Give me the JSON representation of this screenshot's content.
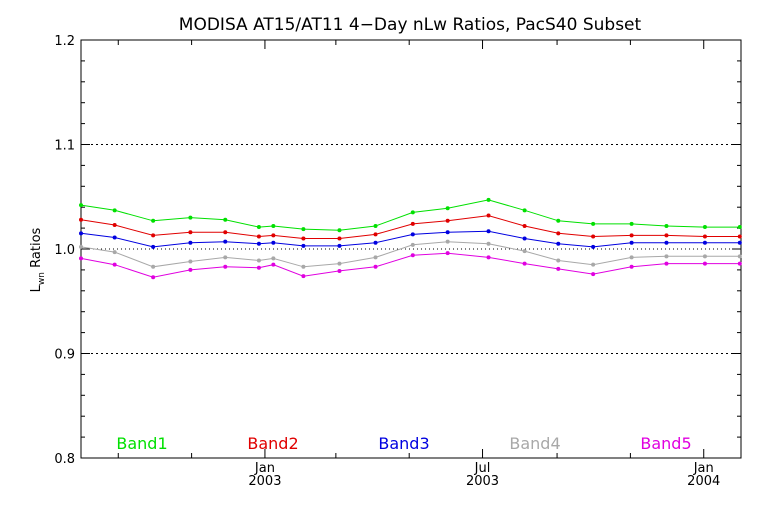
{
  "chart_data": {
    "type": "line",
    "title": "MODISA AT15/AT11 4−Day nLw Ratios, PacS40 Subset",
    "ylabel": "L",
    "ylabel_sub": "wn",
    "ylabel_suffix": " Ratios",
    "ylim": [
      0.8,
      1.2
    ],
    "yticks": [
      0.8,
      0.9,
      1.0,
      1.1,
      1.2
    ],
    "ytick_labels": [
      "0.8",
      "0.9",
      "1.0",
      "1.1",
      "1.2"
    ],
    "grid_y": [
      0.9,
      1.1
    ],
    "reference_line": 1.0,
    "xlim": [
      "2002-08-01",
      "2004-02-01"
    ],
    "xticks": [
      {
        "date": "2003-01-01",
        "line1": "Jan",
        "line2": "2003"
      },
      {
        "date": "2003-07-01",
        "line1": "Jul",
        "line2": "2003"
      },
      {
        "date": "2004-01-01",
        "line1": "Jan",
        "line2": "2004"
      }
    ],
    "xminor_dates": [
      "2002-09-01",
      "2002-11-01",
      "2003-03-01",
      "2003-05-01",
      "2003-09-01",
      "2003-11-01"
    ],
    "x": [
      "2002-08-01",
      "2002-08-29",
      "2002-09-30",
      "2002-10-31",
      "2002-11-29",
      "2002-12-27",
      "2003-01-08",
      "2003-02-02",
      "2003-03-04",
      "2003-04-03",
      "2003-05-04",
      "2003-06-02",
      "2003-07-06",
      "2003-08-05",
      "2003-09-02",
      "2003-10-01",
      "2003-11-02",
      "2003-12-01",
      "2004-01-02",
      "2004-01-31"
    ],
    "series": [
      {
        "name": "Band1",
        "color": "#00e000",
        "values": [
          1.042,
          1.037,
          1.027,
          1.03,
          1.028,
          1.021,
          1.022,
          1.019,
          1.018,
          1.022,
          1.035,
          1.039,
          1.047,
          1.037,
          1.027,
          1.024,
          1.024,
          1.022,
          1.021,
          1.021
        ]
      },
      {
        "name": "Band2",
        "color": "#e00000",
        "values": [
          1.028,
          1.023,
          1.013,
          1.016,
          1.016,
          1.012,
          1.013,
          1.01,
          1.01,
          1.014,
          1.024,
          1.027,
          1.032,
          1.022,
          1.015,
          1.012,
          1.013,
          1.013,
          1.012,
          1.012
        ]
      },
      {
        "name": "Band3",
        "color": "#0000e0",
        "values": [
          1.015,
          1.011,
          1.002,
          1.006,
          1.007,
          1.005,
          1.006,
          1.003,
          1.003,
          1.006,
          1.014,
          1.016,
          1.017,
          1.01,
          1.005,
          1.002,
          1.006,
          1.006,
          1.006,
          1.006
        ]
      },
      {
        "name": "Band4",
        "color": "#a8a8a8",
        "values": [
          1.002,
          0.997,
          0.983,
          0.988,
          0.992,
          0.989,
          0.991,
          0.983,
          0.986,
          0.992,
          1.004,
          1.007,
          1.005,
          0.998,
          0.989,
          0.985,
          0.992,
          0.993,
          0.993,
          0.993
        ]
      },
      {
        "name": "Band5",
        "color": "#e000e0",
        "values": [
          0.991,
          0.985,
          0.973,
          0.98,
          0.983,
          0.982,
          0.985,
          0.974,
          0.979,
          0.983,
          0.994,
          0.996,
          0.992,
          0.986,
          0.981,
          0.976,
          0.983,
          0.986,
          0.986,
          0.986
        ]
      }
    ],
    "legend_placement": "bottom, inside plot"
  }
}
